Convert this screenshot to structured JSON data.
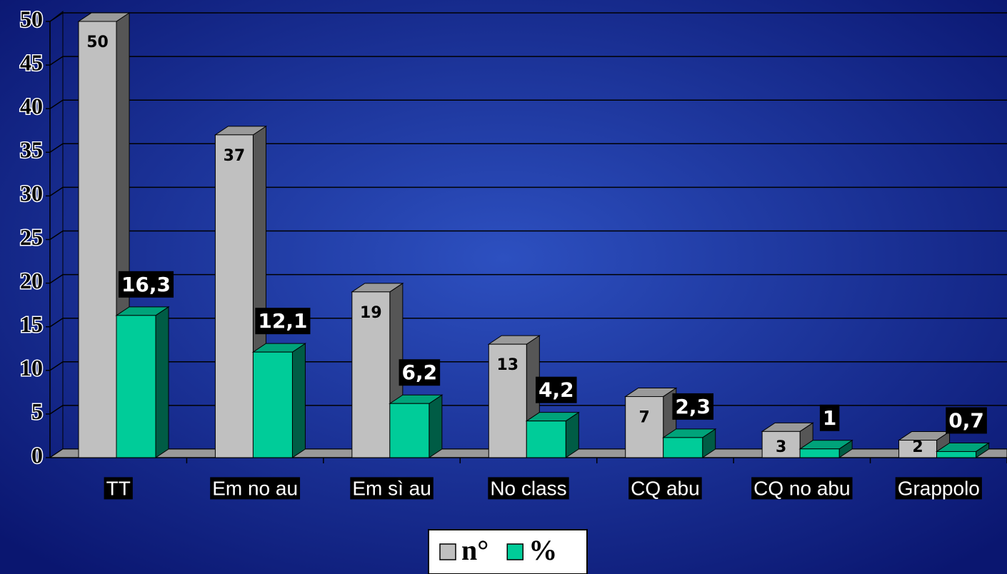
{
  "chart_data": {
    "type": "bar3d",
    "categories": [
      "TT",
      "Em no au",
      "Em sì au",
      "No class",
      "CQ abu",
      "CQ no abu",
      "Grappolo"
    ],
    "series": [
      {
        "name": "n°",
        "color": "#c0c0c0",
        "values": [
          50,
          37,
          19,
          13,
          7,
          3,
          2
        ]
      },
      {
        "name": "%",
        "color": "#00cc99",
        "values": [
          16.3,
          12.1,
          6.2,
          4.2,
          2.3,
          1,
          0.7
        ],
        "value_labels": [
          "16,3",
          "12,1",
          "6,2",
          "4,2",
          "2,3",
          "1",
          "0,7"
        ]
      }
    ],
    "ylim": [
      0,
      50
    ],
    "yticks": [
      0,
      5,
      10,
      15,
      20,
      25,
      30,
      35,
      40,
      45,
      50
    ],
    "grid": true,
    "legend": "bottom"
  }
}
